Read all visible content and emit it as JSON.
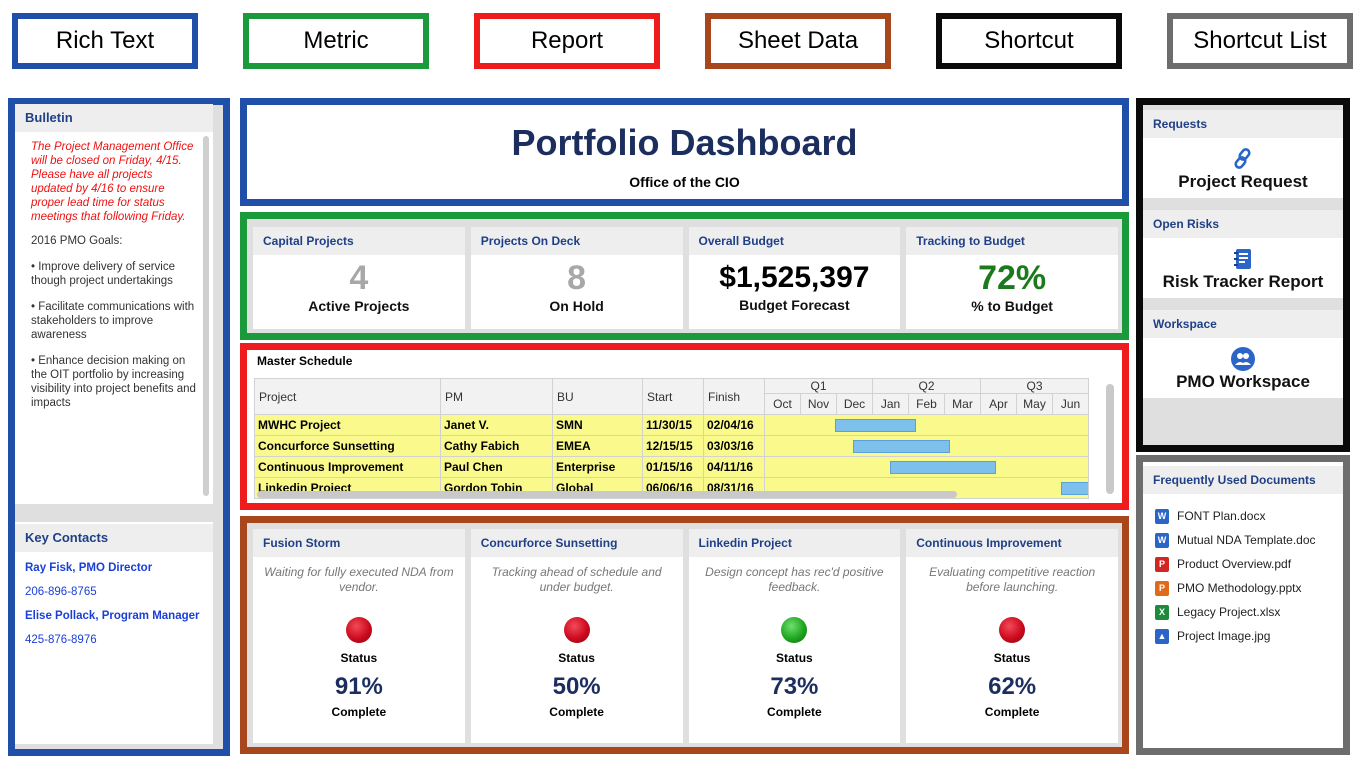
{
  "legend": [
    "Rich Text",
    "Metric",
    "Report",
    "Sheet Data",
    "Shortcut",
    "Shortcut List"
  ],
  "title": {
    "main": "Portfolio Dashboard",
    "sub": "Office of the CIO"
  },
  "bulletin": {
    "header": "Bulletin",
    "notice": "The Project Management Office will be closed on Friday, 4/15.  Please have all projects updated by 4/16 to ensure proper lead time for status meetings that following Friday.",
    "goals_title": "2016 PMO Goals:",
    "goals": [
      "• Improve delivery of service though project undertakings",
      "• Facilitate communications with stakeholders to improve awareness",
      "• Enhance decision making on the OIT portfolio by increasing visibility into project benefits and impacts"
    ]
  },
  "contacts": {
    "header": "Key Contacts",
    "items": [
      "Ray Fisk, PMO Director",
      "206-896-8765",
      "Elise Pollack,  Program Manager",
      "425-876-8976"
    ]
  },
  "metrics": [
    {
      "header": "Capital Projects",
      "value": "4",
      "caption": "Active Projects",
      "color": "#a8a8a8"
    },
    {
      "header": "Projects On Deck",
      "value": "8",
      "caption": "On Hold",
      "color": "#a8a8a8"
    },
    {
      "header": "Overall Budget",
      "value": "$1,525,397",
      "caption": "Budget Forecast",
      "color": "#000000"
    },
    {
      "header": "Tracking to Budget",
      "value": "72%",
      "caption": "% to Budget",
      "color": "#1b7a1b"
    }
  ],
  "schedule": {
    "header": "Master Schedule",
    "columns": [
      "Project",
      "PM",
      "BU",
      "Start",
      "Finish"
    ],
    "quarters": [
      "Q1",
      "Q2",
      "Q3"
    ],
    "months": [
      "Oct",
      "Nov",
      "Dec",
      "Jan",
      "Feb",
      "Mar",
      "Apr",
      "May",
      "Jun"
    ],
    "rows": [
      {
        "project": "MWHC Project",
        "pm": "Janet V.",
        "bu": "SMN",
        "start": "11/30/15",
        "finish": "02/04/16"
      },
      {
        "project": "Concurforce Sunsetting",
        "pm": "Cathy Fabich",
        "bu": "EMEA",
        "start": "12/15/15",
        "finish": "03/03/16"
      },
      {
        "project": "Continuous Improvement",
        "pm": "Paul Chen",
        "bu": "Enterprise",
        "start": "01/15/16",
        "finish": "04/11/16"
      },
      {
        "project": "Linkedin Project",
        "pm": "Gordon Tobin",
        "bu": "Global",
        "start": "06/06/16",
        "finish": "08/31/16"
      }
    ]
  },
  "status_cards": [
    {
      "header": "Fusion Storm",
      "desc": "Waiting for fully executed NDA from vendor.",
      "status_label": "Status",
      "status_color": "#cc0a1e",
      "pct": "91%",
      "complete_label": "Complete"
    },
    {
      "header": "Concurforce Sunsetting",
      "desc": "Tracking ahead of schedule and under budget.",
      "status_label": "Status",
      "status_color": "#cc0a1e",
      "pct": "50%",
      "complete_label": "Complete"
    },
    {
      "header": "Linkedin Project",
      "desc": "Design concept has rec'd positive feedback.",
      "status_label": "Status",
      "status_color": "#1fa51f",
      "pct": "73%",
      "complete_label": "Complete"
    },
    {
      "header": "Continuous Improvement",
      "desc": "Evaluating competitive reaction before launching.",
      "status_label": "Status",
      "status_color": "#cc0a1e",
      "pct": "62%",
      "complete_label": "Complete"
    }
  ],
  "shortcuts": [
    {
      "header": "Requests",
      "label": "Project Request",
      "icon": "link-icon"
    },
    {
      "header": "Open Risks",
      "label": "Risk Tracker Report",
      "icon": "notebook-icon"
    },
    {
      "header": "Workspace",
      "label": "PMO Workspace",
      "icon": "people-icon"
    }
  ],
  "documents": {
    "header": "Frequently Used Documents",
    "items": [
      {
        "name": "FONT Plan.docx",
        "color": "#2b65c8"
      },
      {
        "name": "Mutual NDA Template.doc",
        "color": "#2b65c8"
      },
      {
        "name": "Product Overview.pdf",
        "color": "#d42525"
      },
      {
        "name": "PMO Methodology.pptx",
        "color": "#e0691a"
      },
      {
        "name": "Legacy Project.xlsx",
        "color": "#1e8a3c"
      },
      {
        "name": "Project Image.jpg",
        "color": "#2b65c8"
      }
    ]
  }
}
